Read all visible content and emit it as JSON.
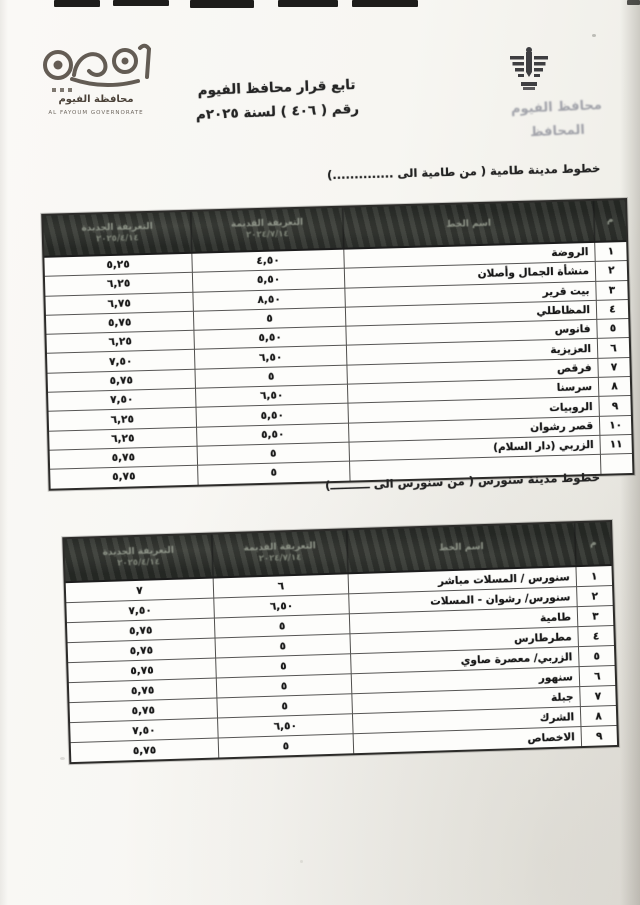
{
  "colors": {
    "paper": "#f7f6f2",
    "ink": "#1c1c1c",
    "table_header_bg": "#2b2e2a",
    "table_line": "#565554",
    "stamp_ink": "#484c60"
  },
  "document": {
    "logo": {
      "brand_ar": "الفيوم",
      "sub_ar": "محافظة الفيوم",
      "sub_en": "AL FAYOUM GOVERNORATE"
    },
    "title_line1": "تابع قرار محافظ الفيوم",
    "title_line2": "رقم ( ٤٠٦ ) لسنة ٢٠٢٥م",
    "stamp_line1": "محافظ الفيوم",
    "stamp_line2": "المحافظ"
  },
  "columns": {
    "num": "م",
    "name": "اسم الخط",
    "old_label": "التعريفة القديمة",
    "old_date": "٢٠٢٤/٧/١٤",
    "new_label": "التعريفة الجديدة",
    "new_date": "٢٠٢٥/٤/١٤"
  },
  "sections": [
    {
      "heading": "خطوط مدينة طامية ( من طامية الى ..............)",
      "rows": [
        {
          "num": "١",
          "name": "الروضة",
          "old": "٤,٥٠",
          "new": "٥,٢٥"
        },
        {
          "num": "٢",
          "name": "منشأة الجمال وأصلان",
          "old": "٥,٥٠",
          "new": "٦,٢٥"
        },
        {
          "num": "٣",
          "name": "بيت قرير",
          "old": "٨,٥٠",
          "new": "٦,٧٥"
        },
        {
          "num": "٤",
          "name": "المظاطلي",
          "old": "٥",
          "new": "٥,٧٥"
        },
        {
          "num": "٥",
          "name": "فانوس",
          "old": "٥,٥٠",
          "new": "٦,٢٥"
        },
        {
          "num": "٦",
          "name": "العزيزية",
          "old": "٦,٥٠",
          "new": "٧,٥٠"
        },
        {
          "num": "٧",
          "name": "فرقص",
          "old": "٥",
          "new": "٥,٧٥"
        },
        {
          "num": "٨",
          "name": "سرسنا",
          "old": "٦,٥٠",
          "new": "٧,٥٠"
        },
        {
          "num": "٩",
          "name": "الروبيات",
          "old": "٥,٥٠",
          "new": "٦,٢٥"
        },
        {
          "num": "١٠",
          "name": "قصر رشوان",
          "old": "٥,٥٠",
          "new": "٦,٢٥"
        },
        {
          "num": "١١",
          "name": "الزربي (دار السلام)",
          "old": "٥",
          "new": "٥,٧٥"
        },
        {
          "num": "",
          "name": "",
          "old": "٥",
          "new": "٥,٧٥"
        }
      ]
    },
    {
      "heading": "خطوط مدينة سنورس ( من سنورس الى ــــــــــ)",
      "rows": [
        {
          "num": "١",
          "name": "سنورس / المسلات مباشر",
          "old": "٦",
          "new": "٧"
        },
        {
          "num": "٢",
          "name": "سنورس/ رشوان - المسلات",
          "old": "٦,٥٠",
          "new": "٧,٥٠"
        },
        {
          "num": "٣",
          "name": "طامية",
          "old": "٥",
          "new": "٥,٧٥"
        },
        {
          "num": "٤",
          "name": "مطرطارس",
          "old": "٥",
          "new": "٥,٧٥"
        },
        {
          "num": "٥",
          "name": "الزربي/ معصرة صاوي",
          "old": "٥",
          "new": "٥,٧٥"
        },
        {
          "num": "٦",
          "name": "سنهور",
          "old": "٥",
          "new": "٥,٧٥"
        },
        {
          "num": "٧",
          "name": "جبلة",
          "old": "٥",
          "new": "٥,٧٥"
        },
        {
          "num": "٨",
          "name": "الشرك",
          "old": "٦,٥٠",
          "new": "٧,٥٠"
        },
        {
          "num": "٩",
          "name": "الاخصاص",
          "old": "٥",
          "new": "٥,٧٥"
        }
      ]
    }
  ]
}
